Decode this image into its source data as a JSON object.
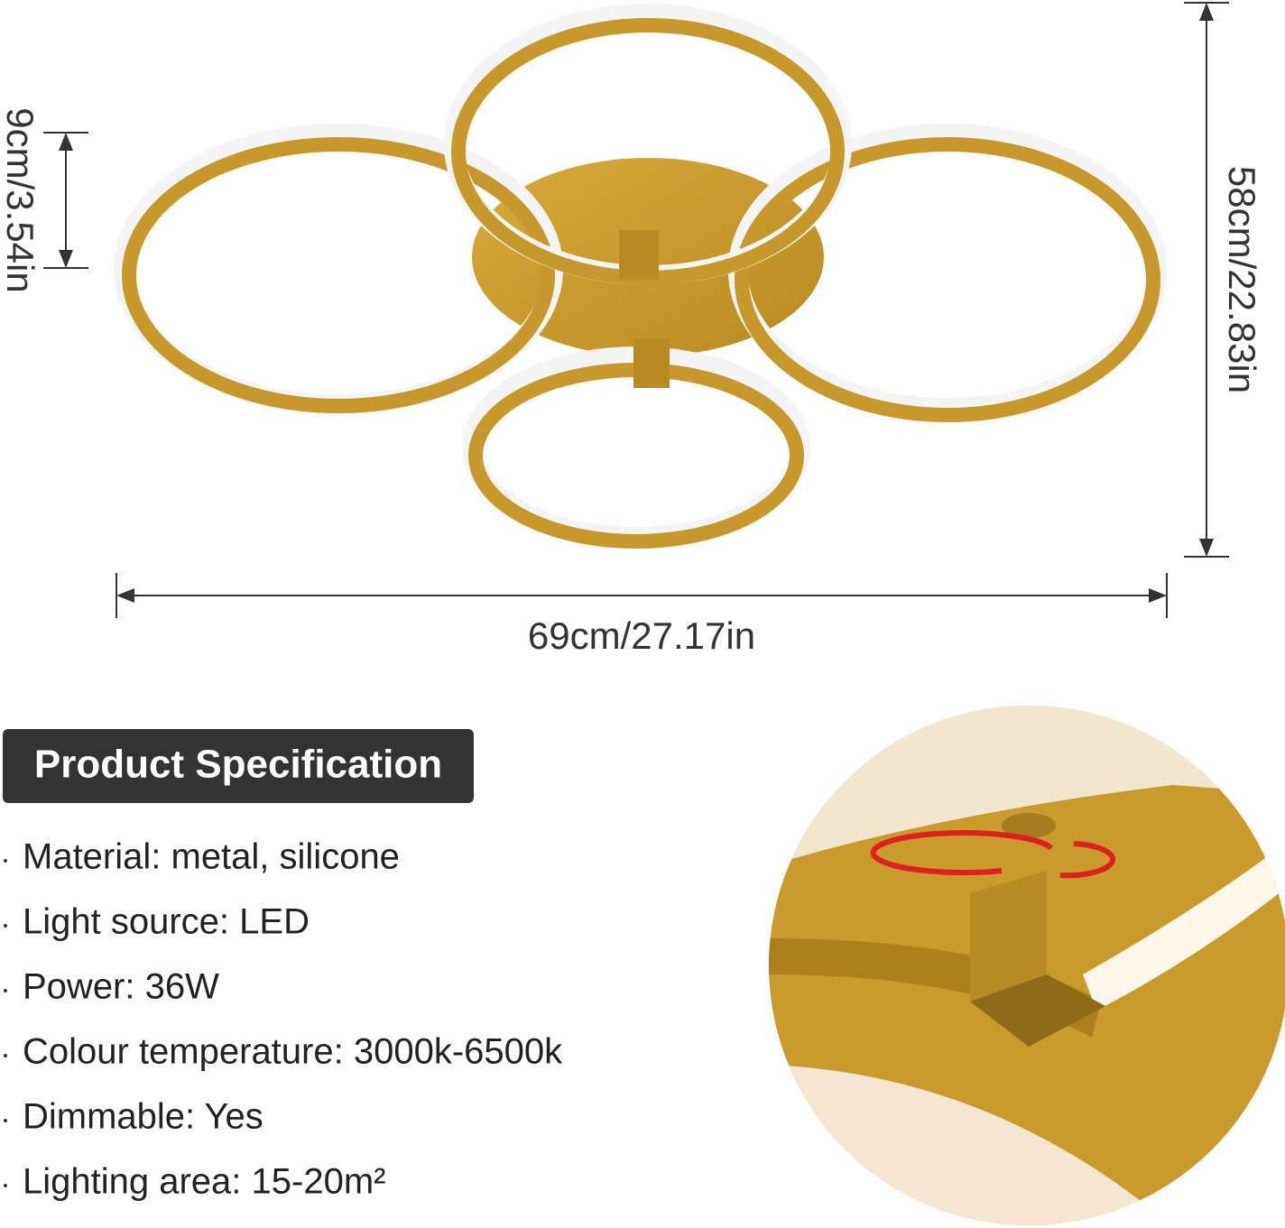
{
  "dimensions": {
    "height": "9cm/3.54in",
    "width": "69cm/27.17in",
    "depth": "58cm/22.83in"
  },
  "specification": {
    "title": "Product Specification",
    "items": [
      "Material: metal, silicone",
      "Light source: LED",
      "Power: 36W",
      "Colour temperature: 3000k-6500k",
      "Dimmable: Yes",
      "Lighting area: 15-20m²"
    ]
  }
}
